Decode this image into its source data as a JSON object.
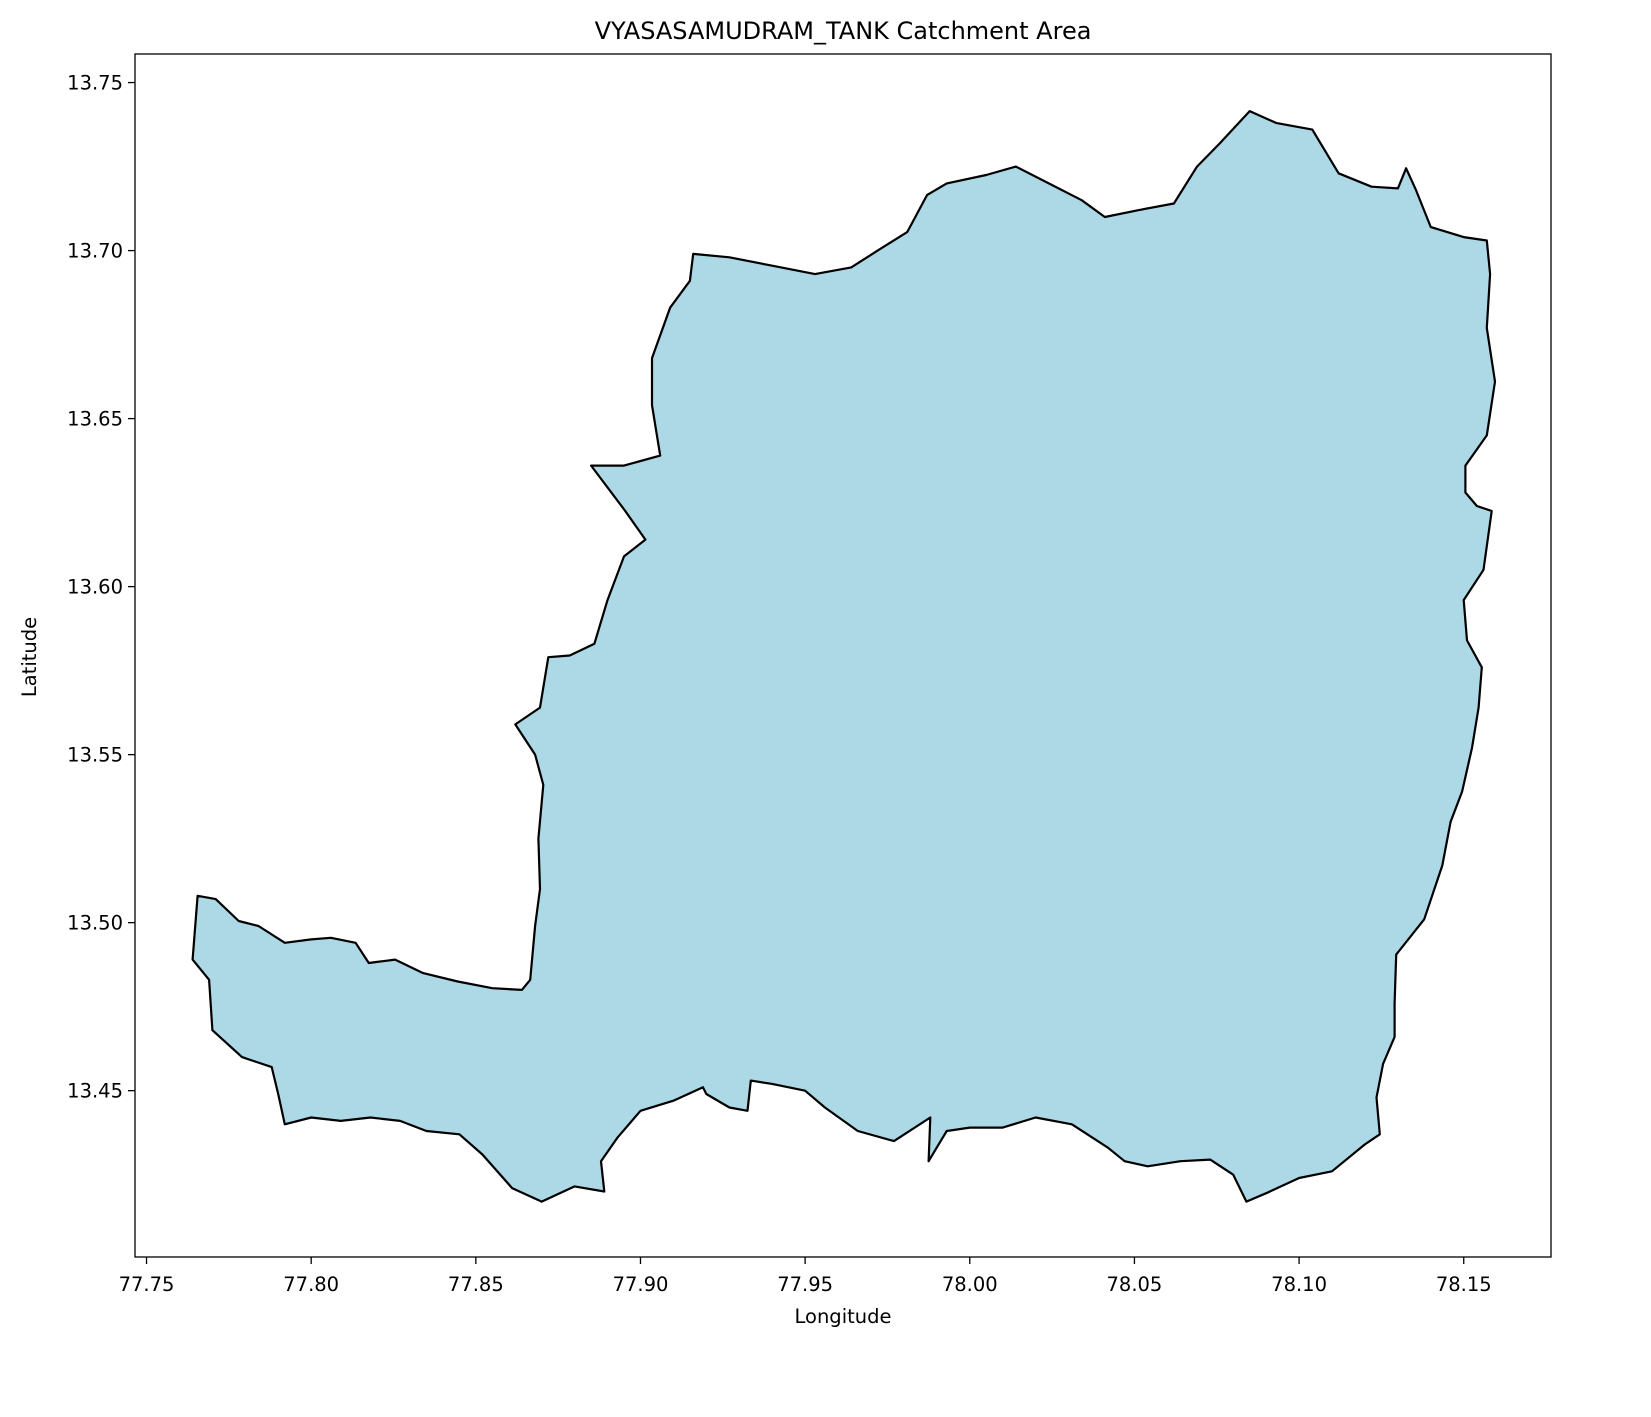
{
  "chart_data": {
    "type": "map",
    "title": "VYASASAMUDRAM_TANK Catchment Area",
    "xlabel": "Longitude",
    "ylabel": "Latitude",
    "xlim": [
      77.7465,
      78.1765
    ],
    "ylim": [
      13.4005,
      13.7585
    ],
    "x_ticks": [
      77.75,
      77.8,
      77.85,
      77.9,
      77.95,
      78.0,
      78.05,
      78.1,
      78.15
    ],
    "x_tick_labels": [
      "77.75",
      "77.80",
      "77.85",
      "77.90",
      "77.95",
      "78.00",
      "78.05",
      "78.10",
      "78.15"
    ],
    "y_ticks": [
      13.45,
      13.5,
      13.55,
      13.6,
      13.65,
      13.7,
      13.75
    ],
    "y_tick_labels": [
      "13.45",
      "13.50",
      "13.55",
      "13.60",
      "13.65",
      "13.70",
      "13.75"
    ],
    "grid": false,
    "fill_color": "#add8e6",
    "edge_color": "#000000",
    "boundary": [
      [
        77.7655,
        13.508
      ],
      [
        77.771,
        13.507
      ],
      [
        77.778,
        13.5005
      ],
      [
        77.784,
        13.499
      ],
      [
        77.792,
        13.494
      ],
      [
        77.8,
        13.495
      ],
      [
        77.806,
        13.4955
      ],
      [
        77.8135,
        13.494
      ],
      [
        77.8175,
        13.488
      ],
      [
        77.8255,
        13.489
      ],
      [
        77.834,
        13.485
      ],
      [
        77.8445,
        13.4825
      ],
      [
        77.855,
        13.4805
      ],
      [
        77.864,
        13.48
      ],
      [
        77.8665,
        13.483
      ],
      [
        77.868,
        13.499
      ],
      [
        77.8695,
        13.51
      ],
      [
        77.869,
        13.525
      ],
      [
        77.8705,
        13.541
      ],
      [
        77.868,
        13.55
      ],
      [
        77.862,
        13.559
      ],
      [
        77.8695,
        13.564
      ],
      [
        77.872,
        13.579
      ],
      [
        77.8785,
        13.5795
      ],
      [
        77.886,
        13.583
      ],
      [
        77.89,
        13.596
      ],
      [
        77.895,
        13.609
      ],
      [
        77.9015,
        13.614
      ],
      [
        77.895,
        13.623
      ],
      [
        77.885,
        13.636
      ],
      [
        77.895,
        13.636
      ],
      [
        77.906,
        13.639
      ],
      [
        77.9035,
        13.654
      ],
      [
        77.9035,
        13.668
      ],
      [
        77.909,
        13.683
      ],
      [
        77.915,
        13.691
      ],
      [
        77.916,
        13.699
      ],
      [
        77.927,
        13.698
      ],
      [
        77.94,
        13.6955
      ],
      [
        77.953,
        13.693
      ],
      [
        77.964,
        13.695
      ],
      [
        77.972,
        13.7
      ],
      [
        77.981,
        13.7055
      ],
      [
        77.987,
        13.7165
      ],
      [
        77.993,
        13.72
      ],
      [
        78.005,
        13.7225
      ],
      [
        78.014,
        13.725
      ],
      [
        78.024,
        13.72
      ],
      [
        78.034,
        13.715
      ],
      [
        78.041,
        13.71
      ],
      [
        78.051,
        13.712
      ],
      [
        78.062,
        13.714
      ],
      [
        78.069,
        13.725
      ],
      [
        78.076,
        13.732
      ],
      [
        78.085,
        13.7415
      ],
      [
        78.093,
        13.738
      ],
      [
        78.104,
        13.736
      ],
      [
        78.112,
        13.723
      ],
      [
        78.122,
        13.719
      ],
      [
        78.13,
        13.7185
      ],
      [
        78.1325,
        13.7245
      ],
      [
        78.1355,
        13.718
      ],
      [
        78.14,
        13.707
      ],
      [
        78.15,
        13.704
      ],
      [
        78.157,
        13.703
      ],
      [
        78.158,
        13.693
      ],
      [
        78.157,
        13.677
      ],
      [
        78.1595,
        13.661
      ],
      [
        78.157,
        13.645
      ],
      [
        78.1505,
        13.636
      ],
      [
        78.1505,
        13.628
      ],
      [
        78.154,
        13.624
      ],
      [
        78.1585,
        13.6225
      ],
      [
        78.156,
        13.605
      ],
      [
        78.15,
        13.596
      ],
      [
        78.151,
        13.584
      ],
      [
        78.1555,
        13.576
      ],
      [
        78.1545,
        13.564
      ],
      [
        78.1525,
        13.552
      ],
      [
        78.1495,
        13.539
      ],
      [
        78.146,
        13.53
      ],
      [
        78.1435,
        13.517
      ],
      [
        78.138,
        13.501
      ],
      [
        78.1295,
        13.4905
      ],
      [
        78.129,
        13.476
      ],
      [
        78.129,
        13.466
      ],
      [
        78.1255,
        13.458
      ],
      [
        78.1235,
        13.448
      ],
      [
        78.1245,
        13.437
      ],
      [
        78.12,
        13.434
      ],
      [
        78.11,
        13.426
      ],
      [
        78.1,
        13.424
      ],
      [
        78.09,
        13.4195
      ],
      [
        78.084,
        13.417
      ],
      [
        78.08,
        13.425
      ],
      [
        78.073,
        13.4295
      ],
      [
        78.064,
        13.429
      ],
      [
        78.054,
        13.4275
      ],
      [
        78.047,
        13.429
      ],
      [
        78.042,
        13.433
      ],
      [
        78.031,
        13.44
      ],
      [
        78.02,
        13.442
      ],
      [
        78.01,
        13.439
      ],
      [
        78.0,
        13.439
      ],
      [
        77.993,
        13.438
      ],
      [
        77.9875,
        13.429
      ],
      [
        77.988,
        13.442
      ],
      [
        77.977,
        13.435
      ],
      [
        77.966,
        13.438
      ],
      [
        77.956,
        13.445
      ],
      [
        77.95,
        13.45
      ],
      [
        77.94,
        13.452
      ],
      [
        77.9335,
        13.453
      ],
      [
        77.9325,
        13.444
      ],
      [
        77.927,
        13.445
      ],
      [
        77.92,
        13.449
      ],
      [
        77.919,
        13.451
      ],
      [
        77.91,
        13.447
      ],
      [
        77.9,
        13.444
      ],
      [
        77.893,
        13.436
      ],
      [
        77.888,
        13.429
      ],
      [
        77.889,
        13.42
      ],
      [
        77.88,
        13.4215
      ],
      [
        77.87,
        13.417
      ],
      [
        77.861,
        13.421
      ],
      [
        77.852,
        13.431
      ],
      [
        77.845,
        13.437
      ],
      [
        77.835,
        13.438
      ],
      [
        77.827,
        13.441
      ],
      [
        77.818,
        13.442
      ],
      [
        77.809,
        13.441
      ],
      [
        77.8,
        13.442
      ],
      [
        77.792,
        13.44
      ],
      [
        77.79,
        13.449
      ],
      [
        77.788,
        13.457
      ],
      [
        77.779,
        13.46
      ],
      [
        77.77,
        13.468
      ],
      [
        77.769,
        13.483
      ],
      [
        77.764,
        13.489
      ],
      [
        77.7655,
        13.508
      ]
    ]
  }
}
